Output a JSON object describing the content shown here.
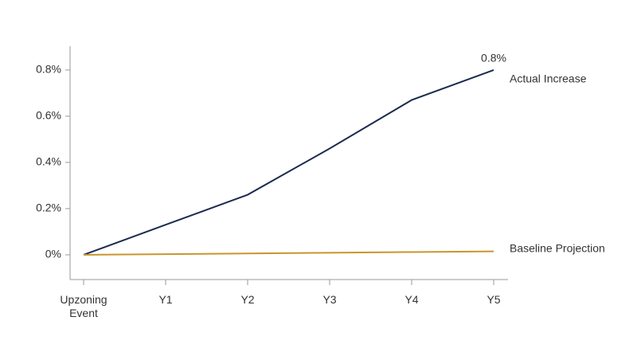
{
  "chart_data": {
    "type": "line",
    "categories": [
      "Upzoning Event",
      "Y1",
      "Y2",
      "Y3",
      "Y4",
      "Y5"
    ],
    "series": [
      {
        "name": "Actual Increase",
        "color": "#1c2b4f",
        "values": [
          0,
          0.13,
          0.26,
          0.46,
          0.67,
          0.8
        ],
        "value_labels": [
          null,
          null,
          null,
          null,
          null,
          "0.8%"
        ]
      },
      {
        "name": "Baseline Projection",
        "color": "#c8962e",
        "values": [
          0,
          0.003,
          0.006,
          0.009,
          0.012,
          0.015
        ]
      }
    ],
    "ylim": [
      -0.107,
      0.903
    ],
    "yticks": [
      {
        "value": 0,
        "label": "0%"
      },
      {
        "value": 0.2,
        "label": "0.2%"
      },
      {
        "value": 0.4,
        "label": "0.4%"
      },
      {
        "value": 0.6,
        "label": "0.6%"
      },
      {
        "value": 0.8,
        "label": "0.8%"
      }
    ]
  }
}
